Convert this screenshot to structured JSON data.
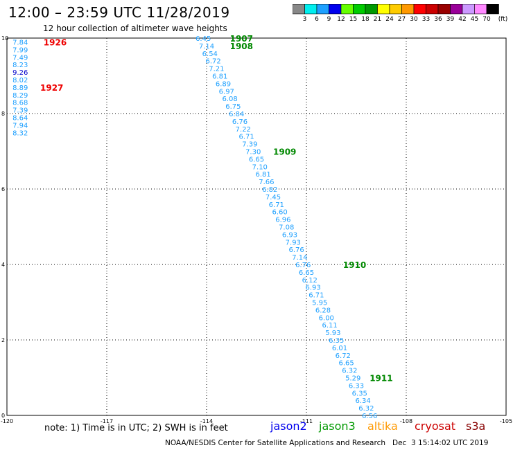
{
  "header": {
    "title": "12:00 – 23:59 UTC 11/28/2019",
    "subtitle": "12 hour collection of altimeter wave heights"
  },
  "color_scale": {
    "labels": [
      "3",
      "6",
      "9",
      "12",
      "15",
      "18",
      "21",
      "24",
      "27",
      "30",
      "33",
      "36",
      "39",
      "42",
      "45",
      "70"
    ],
    "unit": "(ft)",
    "colors": [
      "#888888",
      "#00eeee",
      "#1ea0ff",
      "#0000ee",
      "#66ff00",
      "#00cc00",
      "#009900",
      "#ffff00",
      "#ffcc00",
      "#ff9900",
      "#ff0000",
      "#cc0000",
      "#990000",
      "#990099",
      "#cc99ff",
      "#ff88ff",
      "#000000"
    ]
  },
  "axes": {
    "x_ticks": [
      "-120",
      "-117",
      "-114",
      "-111",
      "-108",
      "-105"
    ],
    "y_ticks": [
      "0",
      "2",
      "4",
      "6",
      "8",
      "10"
    ],
    "x_range": [
      -120,
      -105
    ],
    "y_range": [
      0,
      10
    ]
  },
  "passes": [
    {
      "color": "#1ea0ff",
      "label": "1926",
      "label_color": "#ee0000",
      "points": [
        {
          "lon": -119.6,
          "lat": 9.9,
          "value": "7.84"
        },
        {
          "lon": -119.6,
          "lat": 9.7,
          "value": "7.99"
        },
        {
          "lon": -119.6,
          "lat": 9.5,
          "value": "7.49"
        },
        {
          "lon": -119.6,
          "lat": 9.3,
          "value": "8.23"
        },
        {
          "lon": -119.6,
          "lat": 9.1,
          "value": "9.26",
          "color": "#0000cc"
        },
        {
          "lon": -119.6,
          "lat": 8.9,
          "value": "8.02"
        },
        {
          "lon": -119.6,
          "lat": 8.7,
          "value": "8.89"
        },
        {
          "lon": -119.6,
          "lat": 8.5,
          "value": "8.29"
        },
        {
          "lon": -119.6,
          "lat": 8.3,
          "value": "8.68"
        },
        {
          "lon": -119.6,
          "lat": 8.1,
          "value": "7.39"
        },
        {
          "lon": -119.6,
          "lat": 7.9,
          "value": "8.64"
        },
        {
          "lon": -119.6,
          "lat": 7.7,
          "value": "7.94"
        },
        {
          "lon": -119.6,
          "lat": 7.5,
          "value": "8.32"
        }
      ]
    },
    {
      "label": "1927",
      "label_color": "#ee0000"
    },
    {
      "color": "#1ea0ff",
      "points": [
        {
          "lon": -114.1,
          "lat": 10.0,
          "value": "6.45"
        },
        {
          "lon": -114.0,
          "lat": 9.8,
          "value": "7.14"
        },
        {
          "lon": -113.9,
          "lat": 9.6,
          "value": "6.54"
        },
        {
          "lon": -113.8,
          "lat": 9.4,
          "value": "6.72"
        },
        {
          "lon": -113.7,
          "lat": 9.2,
          "value": "7.21"
        },
        {
          "lon": -113.6,
          "lat": 9.0,
          "value": "6.81"
        },
        {
          "lon": -113.5,
          "lat": 8.8,
          "value": "6.89"
        },
        {
          "lon": -113.4,
          "lat": 8.6,
          "value": "6.97"
        },
        {
          "lon": -113.3,
          "lat": 8.4,
          "value": "6.08"
        },
        {
          "lon": -113.2,
          "lat": 8.2,
          "value": "6.75"
        },
        {
          "lon": -113.1,
          "lat": 8.0,
          "value": "6.84"
        },
        {
          "lon": -113.0,
          "lat": 7.8,
          "value": "6.76"
        },
        {
          "lon": -112.9,
          "lat": 7.6,
          "value": "7.22"
        },
        {
          "lon": -112.8,
          "lat": 7.4,
          "value": "6.71"
        },
        {
          "lon": -112.7,
          "lat": 7.2,
          "value": "7.39"
        },
        {
          "lon": -112.6,
          "lat": 7.0,
          "value": "7.30"
        },
        {
          "lon": -112.5,
          "lat": 6.8,
          "value": "6.65"
        },
        {
          "lon": -112.4,
          "lat": 6.6,
          "value": "7.10"
        },
        {
          "lon": -112.3,
          "lat": 6.4,
          "value": "6.81"
        },
        {
          "lon": -112.2,
          "lat": 6.2,
          "value": "7.66"
        },
        {
          "lon": -112.1,
          "lat": 6.0,
          "value": "6.82"
        },
        {
          "lon": -112.0,
          "lat": 5.8,
          "value": "7.45"
        },
        {
          "lon": -111.9,
          "lat": 5.6,
          "value": "6.71"
        },
        {
          "lon": -111.8,
          "lat": 5.4,
          "value": "6.60"
        },
        {
          "lon": -111.7,
          "lat": 5.2,
          "value": "6.96"
        },
        {
          "lon": -111.6,
          "lat": 5.0,
          "value": "7.08"
        },
        {
          "lon": -111.5,
          "lat": 4.8,
          "value": "6.93"
        },
        {
          "lon": -111.4,
          "lat": 4.6,
          "value": "7.93"
        },
        {
          "lon": -111.3,
          "lat": 4.4,
          "value": "6.76"
        },
        {
          "lon": -111.2,
          "lat": 4.2,
          "value": "7.14"
        },
        {
          "lon": -111.1,
          "lat": 4.0,
          "value": "6.76"
        },
        {
          "lon": -111.0,
          "lat": 3.8,
          "value": "6.65"
        },
        {
          "lon": -110.9,
          "lat": 3.6,
          "value": "6.12"
        },
        {
          "lon": -110.8,
          "lat": 3.4,
          "value": "6.93"
        },
        {
          "lon": -110.7,
          "lat": 3.2,
          "value": "6.71"
        },
        {
          "lon": -110.6,
          "lat": 3.0,
          "value": "5.95"
        },
        {
          "lon": -110.5,
          "lat": 2.8,
          "value": "6.28"
        },
        {
          "lon": -110.4,
          "lat": 2.6,
          "value": "6.00"
        },
        {
          "lon": -110.3,
          "lat": 2.4,
          "value": "6.11"
        },
        {
          "lon": -110.2,
          "lat": 2.2,
          "value": "5.93"
        },
        {
          "lon": -110.1,
          "lat": 2.0,
          "value": "6.35"
        },
        {
          "lon": -110.0,
          "lat": 1.8,
          "value": "6.01"
        },
        {
          "lon": -109.9,
          "lat": 1.6,
          "value": "6.72"
        },
        {
          "lon": -109.8,
          "lat": 1.4,
          "value": "6.65"
        },
        {
          "lon": -109.7,
          "lat": 1.2,
          "value": "6.32"
        },
        {
          "lon": -109.6,
          "lat": 1.0,
          "value": "5.29"
        },
        {
          "lon": -109.5,
          "lat": 0.8,
          "value": "6.33"
        },
        {
          "lon": -109.4,
          "lat": 0.6,
          "value": "6.35"
        },
        {
          "lon": -109.3,
          "lat": 0.4,
          "value": "6.34"
        },
        {
          "lon": -109.2,
          "lat": 0.2,
          "value": "6.32"
        },
        {
          "lon": -109.1,
          "lat": 0.0,
          "value": "6.56"
        }
      ]
    }
  ],
  "time_labels": [
    {
      "text": "1907",
      "lon": -113.3,
      "lat": 10.0,
      "color": "#008800"
    },
    {
      "text": "1908",
      "lon": -113.3,
      "lat": 9.8,
      "color": "#008800"
    },
    {
      "text": "1909",
      "lon": -112.0,
      "lat": 7.0,
      "color": "#008800"
    },
    {
      "text": "1910",
      "lon": -109.9,
      "lat": 4.0,
      "color": "#008800"
    },
    {
      "text": "1911",
      "lon": -109.1,
      "lat": 1.0,
      "color": "#008800"
    },
    {
      "text": "1926",
      "lon": -118.9,
      "lat": 9.9,
      "color": "#ee0000"
    },
    {
      "text": "1927",
      "lon": -119.0,
      "lat": 8.7,
      "color": "#ee0000"
    }
  ],
  "note": "note: 1) Time is in UTC; 2) SWH is in feet",
  "legend": [
    {
      "name": "jason2",
      "color": "#0000ee"
    },
    {
      "name": "jason3",
      "color": "#009900"
    },
    {
      "name": "altika",
      "color": "#ff9900"
    },
    {
      "name": "cryosat",
      "color": "#cc0000"
    },
    {
      "name": "s3a",
      "color": "#880000"
    }
  ],
  "footer": "NOAA/NESDIS Center for Satellite Applications and Research   Dec  3 15:14:02 UTC 2019"
}
